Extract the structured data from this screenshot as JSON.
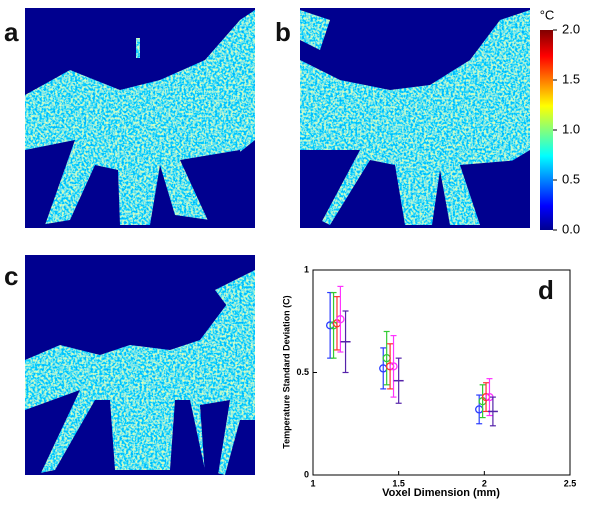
{
  "panels": [
    {
      "label": "a"
    },
    {
      "label": "b"
    },
    {
      "label": "c"
    }
  ],
  "colorbar": {
    "unit": "°C",
    "lim": [
      0,
      2
    ],
    "ticks": [
      {
        "value": 0,
        "label": "0.0"
      },
      0.5,
      {
        "value": 1,
        "label": "1.0"
      },
      1.5,
      {
        "value": 2,
        "label": "2.0"
      }
    ]
  },
  "chart_data": {
    "type": "errorbar",
    "label": "d",
    "xlabel": "Voxel Dimension (mm)",
    "ylabel": "Temperature Standard Deviation (C)",
    "xlim": [
      1,
      2.5
    ],
    "xticks": [
      1,
      1.5,
      2,
      2.5
    ],
    "ylim": [
      0,
      1
    ],
    "yticks": [
      0,
      0.5,
      1
    ],
    "series": [
      {
        "color": "#2a3cff",
        "marker": "circle",
        "x": [
          1.1,
          1.41,
          1.97
        ],
        "values": [
          0.73,
          0.52,
          0.32
        ],
        "errors": [
          0.16,
          0.1,
          0.07
        ]
      },
      {
        "color": "#33cc33",
        "marker": "circle",
        "x": [
          1.12,
          1.43,
          1.99
        ],
        "values": [
          0.73,
          0.57,
          0.36
        ],
        "errors": [
          0.16,
          0.13,
          0.08
        ]
      },
      {
        "color": "#ff3030",
        "marker": "circle",
        "x": [
          1.14,
          1.45,
          2.01
        ],
        "values": [
          0.74,
          0.53,
          0.38
        ],
        "errors": [
          0.13,
          0.11,
          0.07
        ]
      },
      {
        "color": "#ff33ff",
        "marker": "circle",
        "x": [
          1.16,
          1.47,
          2.03
        ],
        "values": [
          0.76,
          0.53,
          0.38
        ],
        "errors": [
          0.16,
          0.15,
          0.09
        ]
      },
      {
        "color": "#5522aa",
        "marker": "line",
        "x": [
          1.19,
          1.5,
          2.05
        ],
        "values": [
          0.65,
          0.46,
          0.31
        ],
        "errors": [
          0.15,
          0.11,
          0.07
        ]
      }
    ]
  }
}
